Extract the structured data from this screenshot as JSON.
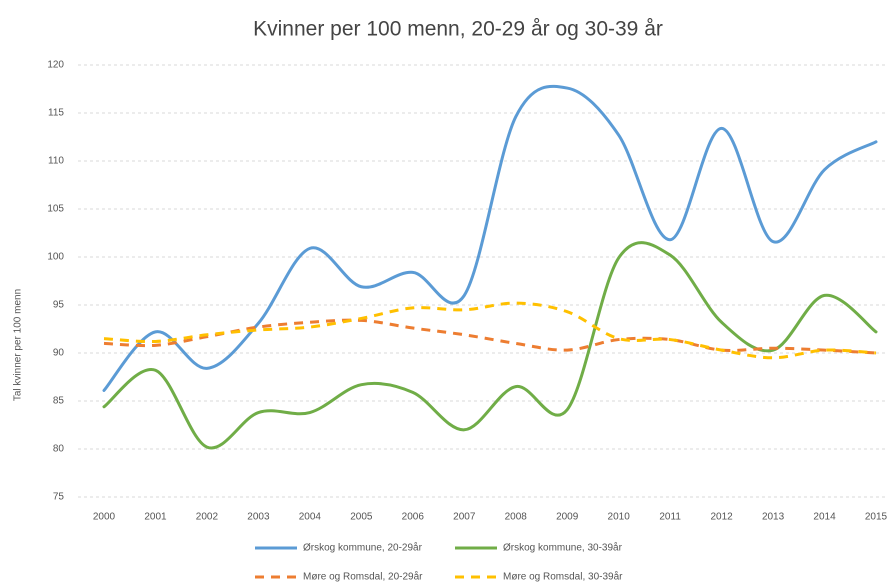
{
  "chart_data": {
    "type": "line",
    "title": "Kvinner per 100 menn,  20-29 år og 30-39 år",
    "y_label": "Tal kvinner per 100 menn",
    "categories": [
      "2000",
      "2001",
      "2002",
      "2003",
      "2004",
      "2005",
      "2006",
      "2007",
      "2008",
      "2009",
      "2010",
      "2011",
      "2012",
      "2013",
      "2014",
      "2015"
    ],
    "ylim": [
      75,
      120
    ],
    "yticks": [
      75,
      80,
      85,
      90,
      95,
      100,
      105,
      110,
      115,
      120
    ],
    "grid": true,
    "smooth": true,
    "legend": "bottom",
    "series": [
      {
        "name": "Ørskog kommune, 20-29år",
        "color": "#5b9bd5",
        "dashed": false,
        "values": [
          86.1,
          92.2,
          88.4,
          93.1,
          100.9,
          96.9,
          98.4,
          96.0,
          114.6,
          117.6,
          112.7,
          101.8,
          113.4,
          101.6,
          109.1,
          112.0
        ]
      },
      {
        "name": "Ørskog kommune, 30-39år",
        "color": "#70ad47",
        "dashed": false,
        "values": [
          84.4,
          88.2,
          80.2,
          83.8,
          83.8,
          86.7,
          85.9,
          82.0,
          86.5,
          84.1,
          99.9,
          100.2,
          93.2,
          90.3,
          96.0,
          92.2
        ]
      },
      {
        "name": "Møre og Romsdal, 20-29år",
        "color": "#ed7d31",
        "dashed": true,
        "values": [
          91.0,
          90.8,
          91.7,
          92.7,
          93.2,
          93.4,
          92.6,
          91.9,
          91.0,
          90.3,
          91.4,
          91.4,
          90.3,
          90.5,
          90.3,
          90.0
        ]
      },
      {
        "name": "Møre og Romsdal, 30-39år",
        "color": "#ffc000",
        "dashed": true,
        "values": [
          91.5,
          91.2,
          91.9,
          92.4,
          92.7,
          93.6,
          94.7,
          94.5,
          95.2,
          94.3,
          91.5,
          91.4,
          90.3,
          89.5,
          90.3,
          90.0
        ]
      }
    ]
  }
}
